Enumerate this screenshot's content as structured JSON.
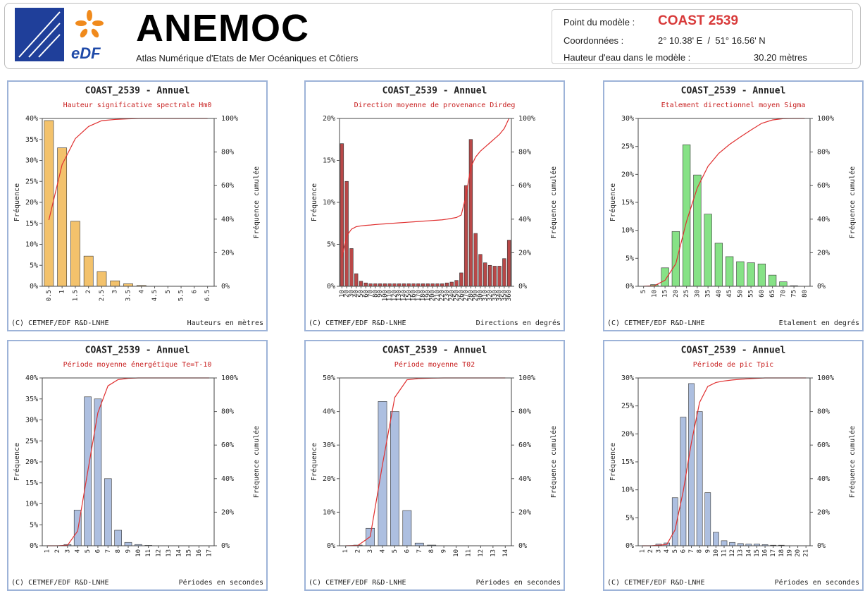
{
  "header": {
    "brand": "eDF",
    "title": "ANEMOC",
    "subtitle": "Atlas Numérique d'Etats de Mer Océaniques et Côtiers",
    "point_label": "Point du modèle :",
    "point": "COAST 2539",
    "coords_label": "Coordonnées :",
    "coords": "2° 10.38' E  /  51° 16.56' N",
    "depth_label": "Hauteur d'eau dans le modèle :",
    "depth": "30.20 mètres"
  },
  "chart_data": [
    {
      "type": "bar",
      "title": "COAST_2539 - Annuel",
      "subtitle": "Hauteur significative spectrale Hm0",
      "ylabel": "Fréquence",
      "y2label": "Fréquence cumulée",
      "xlabel": "Hauteurs en mètres",
      "credit": "(C) CETMEF/EDF R&D-LNHE",
      "categories": [
        "0.5",
        "1",
        "1.5",
        "2",
        "2.5",
        "3",
        "3.5",
        "4",
        "4.5",
        "5",
        "5.5",
        "6",
        "6.5"
      ],
      "series": [
        {
          "color": "#f3c26c",
          "values": [
            39.5,
            33,
            15.5,
            7.2,
            3.5,
            1.3,
            0.6,
            0.2,
            0,
            0,
            0,
            0,
            0
          ]
        },
        {
          "type": "line",
          "axis": "y2",
          "color": "#e03030",
          "values": [
            39.5,
            72.5,
            88,
            95.2,
            98.7,
            99.4,
            99.8,
            100,
            100,
            100,
            100,
            100,
            100
          ]
        }
      ],
      "ylim": [
        0,
        40
      ],
      "yticks": [
        {
          "value": 0,
          "label": "0%"
        },
        {
          "value": 5,
          "label": "5%"
        },
        {
          "value": 10,
          "label": "10%"
        },
        {
          "value": 15,
          "label": "15%"
        },
        {
          "value": 20,
          "label": "20%"
        },
        {
          "value": 25,
          "label": "25%"
        },
        {
          "value": 30,
          "label": "30%"
        },
        {
          "value": 35,
          "label": "35%"
        },
        {
          "value": 40,
          "label": "40%"
        }
      ],
      "y2lim": [
        0,
        100
      ],
      "y2ticks": [
        {
          "value": 0,
          "label": "0%"
        },
        {
          "value": 20,
          "label": "20%"
        },
        {
          "value": 40,
          "label": "40%"
        },
        {
          "value": 60,
          "label": "60%"
        },
        {
          "value": 80,
          "label": "80%"
        },
        {
          "value": 100,
          "label": "100%"
        }
      ]
    },
    {
      "type": "bar",
      "title": "COAST_2539 - Annuel",
      "subtitle": "Direction moyenne de provenance Dirdeg",
      "ylabel": "Fréquence",
      "y2label": "Fréquence cumulée",
      "xlabel": "Directions en degrés",
      "credit": "(C) CETMEF/EDF R&D-LNHE",
      "categories": [
        "10",
        "20",
        "30",
        "40",
        "50",
        "60",
        "70",
        "80",
        "90",
        "100",
        "110",
        "120",
        "130",
        "140",
        "150",
        "160",
        "170",
        "180",
        "190",
        "200",
        "210",
        "220",
        "230",
        "240",
        "250",
        "260",
        "270",
        "280",
        "290",
        "300",
        "310",
        "320",
        "330",
        "340",
        "350",
        "360"
      ],
      "series": [
        {
          "color": "#b94848",
          "values": [
            17,
            12.5,
            4.5,
            1.5,
            0.6,
            0.4,
            0.3,
            0.3,
            0.3,
            0.3,
            0.3,
            0.3,
            0.3,
            0.3,
            0.3,
            0.3,
            0.3,
            0.3,
            0.3,
            0.3,
            0.3,
            0.3,
            0.4,
            0.5,
            0.7,
            1.6,
            12,
            17.5,
            6.3,
            3.8,
            2.8,
            2.5,
            2.4,
            2.4,
            3.3,
            5.5
          ]
        },
        {
          "type": "line",
          "axis": "y2",
          "color": "#e03030",
          "values": [
            17,
            30,
            34,
            35.5,
            36,
            36.3,
            36.5,
            36.8,
            37,
            37.2,
            37.4,
            37.6,
            37.8,
            38,
            38.2,
            38.4,
            38.6,
            38.8,
            39,
            39.2,
            39.4,
            39.6,
            40,
            40.5,
            41,
            42.5,
            54,
            71,
            77,
            80.5,
            83,
            85.5,
            88,
            90.5,
            94,
            100
          ]
        }
      ],
      "ylim": [
        0,
        20
      ],
      "yticks": [
        {
          "value": 0,
          "label": "0%"
        },
        {
          "value": 5,
          "label": "5%"
        },
        {
          "value": 10,
          "label": "10%"
        },
        {
          "value": 15,
          "label": "15%"
        },
        {
          "value": 20,
          "label": "20%"
        }
      ],
      "y2lim": [
        0,
        100
      ],
      "y2ticks": [
        {
          "value": 0,
          "label": "0%"
        },
        {
          "value": 20,
          "label": "20%"
        },
        {
          "value": 40,
          "label": "40%"
        },
        {
          "value": 60,
          "label": "60%"
        },
        {
          "value": 80,
          "label": "80%"
        },
        {
          "value": 100,
          "label": "100%"
        }
      ]
    },
    {
      "type": "bar",
      "title": "COAST_2539 - Annuel",
      "subtitle": "Etalement directionnel moyen Sigma",
      "ylabel": "Fréquence",
      "y2label": "Fréquence cumulée",
      "xlabel": "Etalement en degrés",
      "credit": "(C) CETMEF/EDF R&D-LNHE",
      "categories": [
        "5",
        "10",
        "15",
        "20",
        "25",
        "30",
        "35",
        "40",
        "45",
        "50",
        "55",
        "60",
        "65",
        "70",
        "75",
        "80"
      ],
      "series": [
        {
          "color": "#86e286",
          "values": [
            0,
            0.3,
            3.3,
            9.8,
            25.3,
            19.9,
            12.9,
            7.7,
            5.3,
            4.4,
            4.2,
            4.0,
            2.0,
            0.8,
            0.1,
            0
          ]
        },
        {
          "type": "line",
          "axis": "y2",
          "color": "#e03030",
          "values": [
            0,
            0.3,
            3.6,
            13.4,
            38.7,
            58.6,
            71.5,
            79.2,
            84.5,
            88.9,
            93.1,
            97.1,
            99.1,
            99.9,
            100,
            100
          ]
        }
      ],
      "ylim": [
        0,
        30
      ],
      "yticks": [
        {
          "value": 0,
          "label": "0%"
        },
        {
          "value": 5,
          "label": "5%"
        },
        {
          "value": 10,
          "label": "10%"
        },
        {
          "value": 15,
          "label": "15%"
        },
        {
          "value": 20,
          "label": "20%"
        },
        {
          "value": 25,
          "label": "25%"
        },
        {
          "value": 30,
          "label": "30%"
        }
      ],
      "y2lim": [
        0,
        100
      ],
      "y2ticks": [
        {
          "value": 0,
          "label": "0%"
        },
        {
          "value": 20,
          "label": "20%"
        },
        {
          "value": 40,
          "label": "40%"
        },
        {
          "value": 60,
          "label": "60%"
        },
        {
          "value": 80,
          "label": "80%"
        },
        {
          "value": 100,
          "label": "100%"
        }
      ]
    },
    {
      "type": "bar",
      "title": "COAST_2539 - Annuel",
      "subtitle": "Période moyenne énergétique Te=T-10",
      "ylabel": "Fréquence",
      "y2label": "Fréquence cumulée",
      "xlabel": "Périodes en secondes",
      "credit": "(C) CETMEF/EDF R&D-LNHE",
      "categories": [
        "1",
        "2",
        "3",
        "4",
        "5",
        "6",
        "7",
        "8",
        "9",
        "10",
        "11",
        "12",
        "13",
        "14",
        "15",
        "16",
        "17"
      ],
      "series": [
        {
          "color": "#adbfe0",
          "values": [
            0,
            0,
            0.3,
            8.5,
            35.5,
            35,
            16,
            3.7,
            0.8,
            0.3,
            0.1,
            0,
            0,
            0,
            0,
            0,
            0
          ]
        },
        {
          "type": "line",
          "axis": "y2",
          "color": "#e03030",
          "values": [
            0,
            0,
            0.3,
            8.8,
            44.3,
            79.3,
            95.3,
            99,
            99.8,
            100,
            100,
            100,
            100,
            100,
            100,
            100,
            100
          ]
        }
      ],
      "ylim": [
        0,
        40
      ],
      "yticks": [
        {
          "value": 0,
          "label": "0%"
        },
        {
          "value": 5,
          "label": "5%"
        },
        {
          "value": 10,
          "label": "10%"
        },
        {
          "value": 15,
          "label": "15%"
        },
        {
          "value": 20,
          "label": "20%"
        },
        {
          "value": 25,
          "label": "25%"
        },
        {
          "value": 30,
          "label": "30%"
        },
        {
          "value": 35,
          "label": "35%"
        },
        {
          "value": 40,
          "label": "40%"
        }
      ],
      "y2lim": [
        0,
        100
      ],
      "y2ticks": [
        {
          "value": 0,
          "label": "0%"
        },
        {
          "value": 20,
          "label": "20%"
        },
        {
          "value": 40,
          "label": "40%"
        },
        {
          "value": 60,
          "label": "60%"
        },
        {
          "value": 80,
          "label": "80%"
        },
        {
          "value": 100,
          "label": "100%"
        }
      ]
    },
    {
      "type": "bar",
      "title": "COAST_2539 - Annuel",
      "subtitle": "Période moyenne T02",
      "ylabel": "Fréquence",
      "y2label": "Fréquence cumulée",
      "xlabel": "Périodes en secondes",
      "credit": "(C) CETMEF/EDF R&D-LNHE",
      "categories": [
        "1",
        "2",
        "3",
        "4",
        "5",
        "6",
        "7",
        "8",
        "9",
        "10",
        "11",
        "12",
        "13",
        "14"
      ],
      "series": [
        {
          "color": "#adbfe0",
          "values": [
            0,
            0.2,
            5.2,
            43,
            40,
            10.5,
            0.8,
            0.2,
            0,
            0,
            0,
            0,
            0,
            0
          ]
        },
        {
          "type": "line",
          "axis": "y2",
          "color": "#e03030",
          "values": [
            0,
            0.2,
            5.4,
            48.4,
            88.4,
            98.9,
            99.7,
            99.9,
            100,
            100,
            100,
            100,
            100,
            100
          ]
        }
      ],
      "ylim": [
        0,
        50
      ],
      "yticks": [
        {
          "value": 0,
          "label": "0%"
        },
        {
          "value": 10,
          "label": "10%"
        },
        {
          "value": 20,
          "label": "20%"
        },
        {
          "value": 30,
          "label": "30%"
        },
        {
          "value": 40,
          "label": "40%"
        },
        {
          "value": 50,
          "label": "50%"
        }
      ],
      "y2lim": [
        0,
        100
      ],
      "y2ticks": [
        {
          "value": 0,
          "label": "0%"
        },
        {
          "value": 20,
          "label": "20%"
        },
        {
          "value": 40,
          "label": "40%"
        },
        {
          "value": 60,
          "label": "60%"
        },
        {
          "value": 80,
          "label": "80%"
        },
        {
          "value": 100,
          "label": "100%"
        }
      ]
    },
    {
      "type": "bar",
      "title": "COAST_2539 - Annuel",
      "subtitle": "Période de pic Tpic",
      "ylabel": "Fréquence",
      "y2label": "Fréquence cumulée",
      "xlabel": "Périodes en secondes",
      "credit": "(C) CETMEF/EDF R&D-LNHE",
      "categories": [
        "1",
        "2",
        "3",
        "4",
        "5",
        "6",
        "7",
        "8",
        "9",
        "10",
        "11",
        "12",
        "13",
        "14",
        "15",
        "16",
        "17",
        "18",
        "19",
        "20",
        "21"
      ],
      "series": [
        {
          "color": "#adbfe0",
          "values": [
            0,
            0,
            0.3,
            0.5,
            8.6,
            23,
            29,
            24,
            9.5,
            2.4,
            0.9,
            0.6,
            0.4,
            0.3,
            0.3,
            0.2,
            0.1,
            0.1,
            0,
            0,
            0
          ]
        },
        {
          "type": "line",
          "axis": "y2",
          "color": "#e03030",
          "values": [
            0,
            0,
            0.3,
            0.8,
            9.4,
            32.4,
            61.4,
            85.4,
            94.9,
            97.3,
            98.2,
            98.8,
            99.2,
            99.5,
            99.8,
            100,
            100,
            100,
            100,
            100,
            100
          ]
        }
      ],
      "ylim": [
        0,
        30
      ],
      "yticks": [
        {
          "value": 0,
          "label": "0%"
        },
        {
          "value": 5,
          "label": "5%"
        },
        {
          "value": 10,
          "label": "10%"
        },
        {
          "value": 15,
          "label": "15%"
        },
        {
          "value": 20,
          "label": "20%"
        },
        {
          "value": 25,
          "label": "25%"
        },
        {
          "value": 30,
          "label": "30%"
        }
      ],
      "y2lim": [
        0,
        100
      ],
      "y2ticks": [
        {
          "value": 0,
          "label": "0%"
        },
        {
          "value": 20,
          "label": "20%"
        },
        {
          "value": 40,
          "label": "40%"
        },
        {
          "value": 60,
          "label": "60%"
        },
        {
          "value": 80,
          "label": "80%"
        },
        {
          "value": 100,
          "label": "100%"
        }
      ]
    }
  ]
}
